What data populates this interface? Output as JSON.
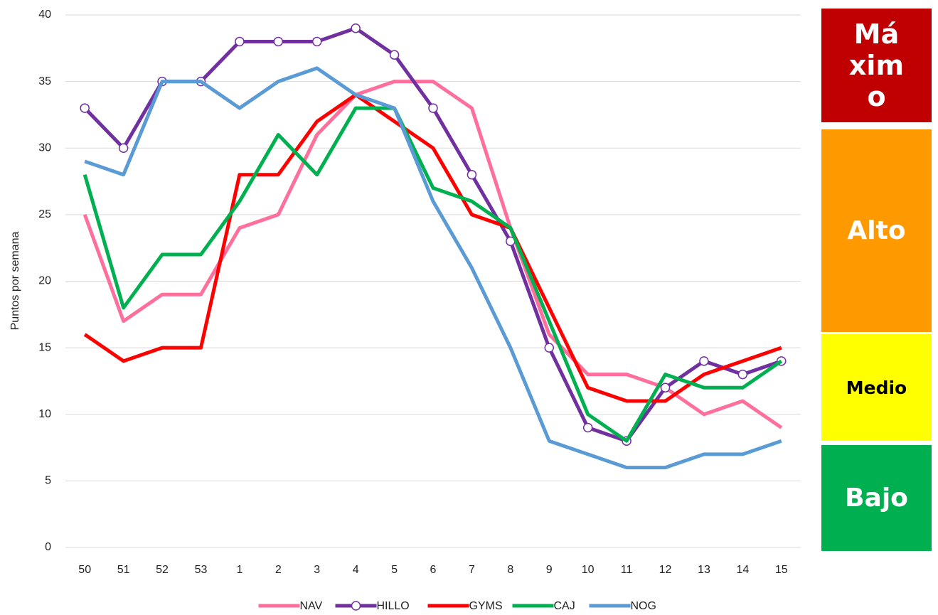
{
  "chart_data": {
    "type": "line",
    "y_label": "Puntos por semana",
    "categories": [
      "50",
      "51",
      "52",
      "53",
      "1",
      "2",
      "3",
      "4",
      "5",
      "6",
      "7",
      "8",
      "9",
      "10",
      "11",
      "12",
      "13",
      "14",
      "15"
    ],
    "series": [
      {
        "name": "NAV",
        "color": "#ff6f9c",
        "values": [
          25,
          17,
          19,
          19,
          24,
          25,
          31,
          34,
          35,
          35,
          33,
          24,
          16,
          13,
          13,
          12,
          10,
          11,
          9
        ]
      },
      {
        "name": "HILLO",
        "color": "#7030a0",
        "marker": true,
        "values": [
          33,
          30,
          35,
          35,
          38,
          38,
          38,
          39,
          37,
          33,
          28,
          23,
          15,
          9,
          8,
          12,
          14,
          13,
          14
        ]
      },
      {
        "name": "GYMS",
        "color": "#ff0000",
        "values": [
          16,
          14,
          15,
          15,
          28,
          28,
          32,
          34,
          32,
          30,
          25,
          24,
          18,
          12,
          11,
          11,
          13,
          14,
          15
        ]
      },
      {
        "name": "CAJ",
        "color": "#00b050",
        "values": [
          28,
          18,
          22,
          22,
          26,
          31,
          28,
          33,
          33,
          27,
          26,
          24,
          17,
          10,
          8,
          13,
          12,
          12,
          14
        ]
      },
      {
        "name": "NOG",
        "color": "#5b9bd5",
        "values": [
          29,
          28,
          35,
          35,
          33,
          35,
          36,
          34,
          33,
          26,
          21,
          15,
          8,
          7,
          6,
          6,
          7,
          7,
          8
        ]
      }
    ],
    "ylim": [
      0,
      40
    ],
    "yticks": [
      0,
      5,
      10,
      15,
      20,
      25,
      30,
      35,
      40
    ],
    "grid": true,
    "zones": [
      {
        "label": "Máximo",
        "color": "#c00000",
        "text_color": "#ffffff"
      },
      {
        "label": "Alto",
        "color": "#ff9900",
        "text_color": "#ffffff"
      },
      {
        "label": "Medio",
        "color": "#ffff00",
        "text_color": "#000000"
      },
      {
        "label": "Bajo",
        "color": "#00b050",
        "text_color": "#ffffff"
      }
    ]
  }
}
